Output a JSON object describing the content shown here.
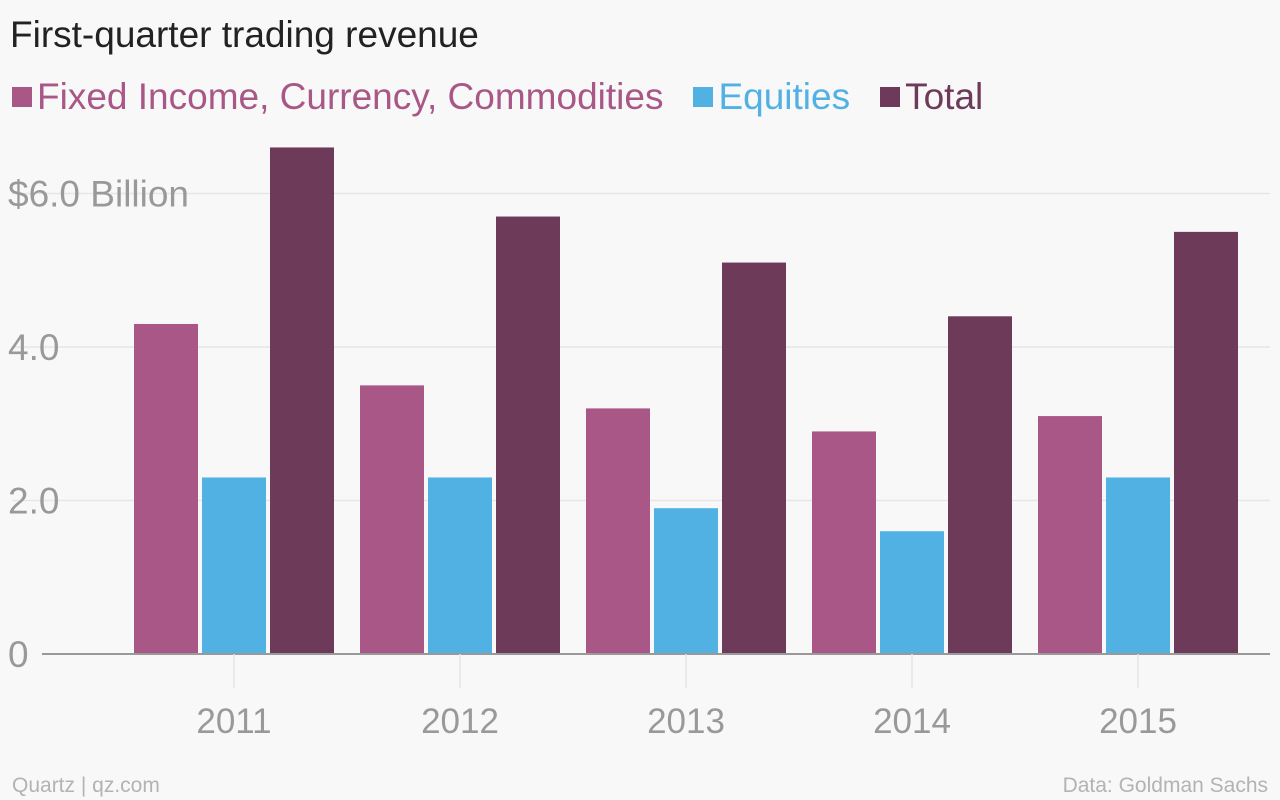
{
  "chart_data": {
    "type": "bar",
    "title": "First-quarter trading revenue",
    "categories": [
      "2011",
      "2012",
      "2013",
      "2014",
      "2015"
    ],
    "series": [
      {
        "name": "Fixed Income, Currency, Commodities",
        "color": "#a95787",
        "values": [
          4.3,
          3.5,
          3.2,
          2.9,
          3.1
        ]
      },
      {
        "name": "Equities",
        "color": "#52b1e3",
        "values": [
          2.3,
          2.3,
          1.9,
          1.6,
          2.3
        ]
      },
      {
        "name": "Total",
        "color": "#6e3a59",
        "values": [
          6.6,
          5.7,
          5.1,
          4.4,
          5.5
        ]
      }
    ],
    "y_ticks": [
      {
        "value": 0,
        "label": "0"
      },
      {
        "value": 2,
        "label": "2.0"
      },
      {
        "value": 4,
        "label": "4.0"
      },
      {
        "value": 6,
        "label": "$6.0 Billion"
      }
    ],
    "ylim": [
      0,
      6.6
    ],
    "grid": true,
    "legend_position": "top-left"
  },
  "footer": {
    "source_left": "Quartz | qz.com",
    "source_right": "Data: Goldman Sachs"
  },
  "colors": {
    "grid": "#e6e6e6",
    "axis": "#999999",
    "tick_label": "#999999"
  }
}
